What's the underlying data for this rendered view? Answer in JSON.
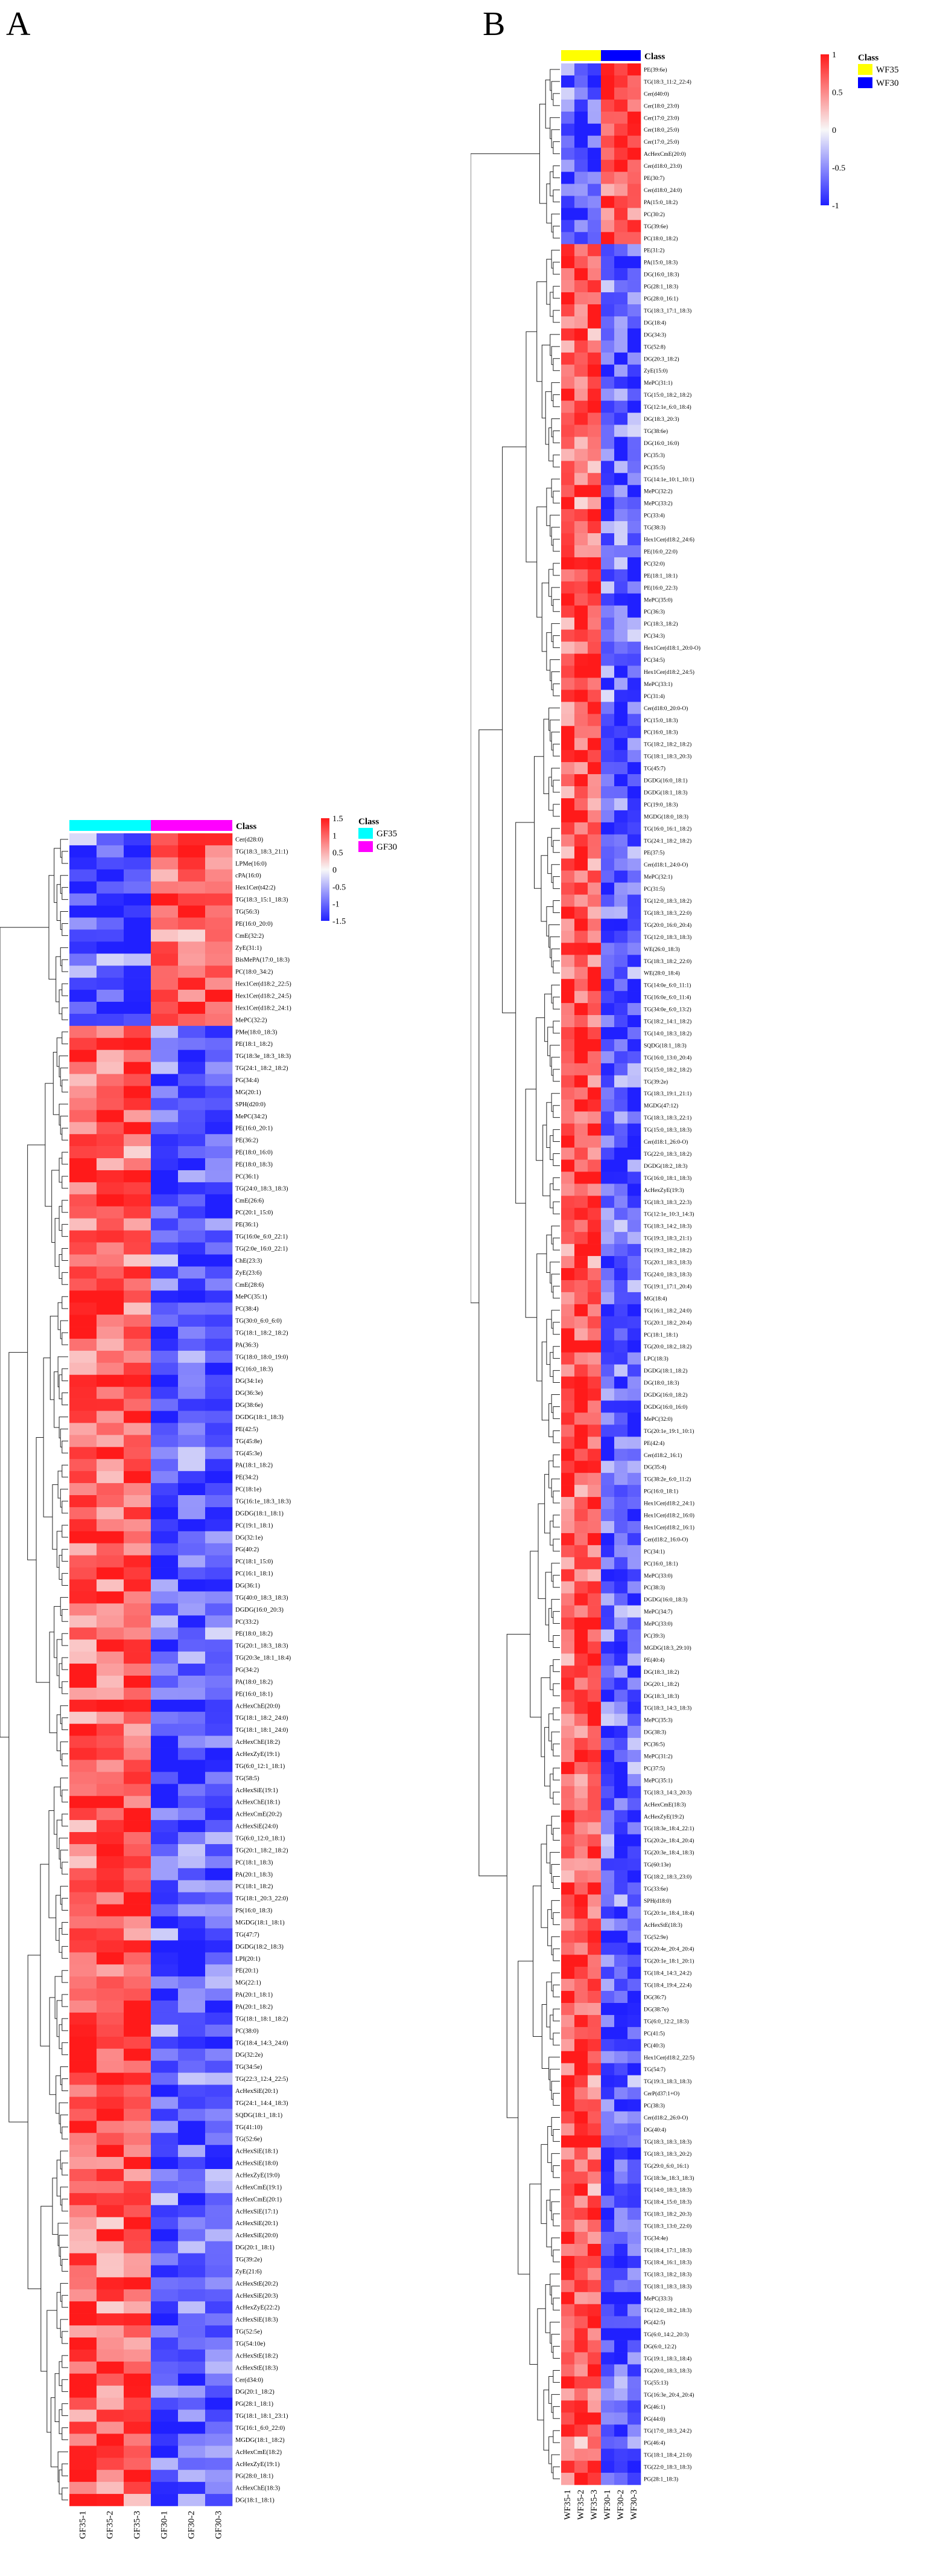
{
  "panels": [
    {
      "letter": "A",
      "colors": {
        "low": "#2020ff",
        "mid": "#f8f8f8",
        "high": "#ff1a1a"
      },
      "chart_data": {
        "type": "heatmap",
        "columns": [
          "GF35-1",
          "GF35-2",
          "GF35-3",
          "GF30-1",
          "GF30-2",
          "GF30-3"
        ],
        "column_class": [
          "GF35",
          "GF35",
          "GF35",
          "GF30",
          "GF30",
          "GF30"
        ],
        "class_title": "Class",
        "class_legend": [
          {
            "label": "GF35",
            "color": "#00ffff"
          },
          {
            "label": "GF30",
            "color": "#ff00ff"
          }
        ],
        "color_scale": {
          "ticks": [
            "1.5",
            "1",
            "0.5",
            "0",
            "-0.5",
            "-1",
            "-1.5"
          ],
          "range": [
            -1.5,
            1.5
          ]
        },
        "rows": [
          "Cer(d28:0)",
          "TG(18:3_18:3_21:1)",
          "LPMe(16:0)",
          "cPA(16:0)",
          "Hex1Cer(t42:2)",
          "TG(18:3_15:1_18:3)",
          "TG(56:3)",
          "PE(16:0_20:0)",
          "CmE(32:2)",
          "ZyE(31:1)",
          "BisMePA(17:0_18:3)",
          "PC(18:0_34:2)",
          "Hex1Cer(d18:2_22:5)",
          "Hex1Cer(d18:2_24:5)",
          "Hex1Cer(d18:2_24:1)",
          "MePC(32:2)",
          "PMe(18:0_18:3)",
          "PE(18:1_18:2)",
          "TG(18:3e_18:3_18:3)",
          "TG(24:1_18:2_18:2)",
          "PG(34:4)",
          "MG(20:1)",
          "SPH(d20:0)",
          "MePC(34:2)",
          "PE(16:0_20:1)",
          "PE(36:2)",
          "PE(18:0_16:0)",
          "PE(18:0_18:3)",
          "PC(36:1)",
          "TG(24:0_18:3_18:3)",
          "CmE(26:6)",
          "PC(20:1_15:0)",
          "PE(36:1)",
          "TG(16:0e_6:0_22:1)",
          "TG(2:0e_16:0_22:1)",
          "ChE(23:3)",
          "ZyE(23:6)",
          "CmE(28:6)",
          "MePC(35:1)",
          "PC(38:4)",
          "TG(30:0_6:0_6:0)",
          "TG(18:1_18:2_18:2)",
          "PA(36:3)",
          "TG(18:0_18:0_19:0)",
          "PC(16:0_18:3)",
          "DG(34:1e)",
          "DG(36:3e)",
          "DG(38:6e)",
          "DGDG(18:1_18:3)",
          "PE(42:5)",
          "TG(45:8e)",
          "TG(45:3e)",
          "PA(18:1_18:2)",
          "PE(34:2)",
          "PC(18:1e)",
          "TG(16:1e_18:3_18:3)",
          "DGDG(18:1_18:1)",
          "PC(19:1_18:1)",
          "DG(32:1e)",
          "PG(40:2)",
          "PC(18:1_15:0)",
          "PC(16:1_18:1)",
          "DG(36:1)",
          "TG(40:0_18:3_18:3)",
          "DGDG(16:0_20:3)",
          "PC(33:2)",
          "PE(18:0_18:2)",
          "TG(20:1_18:3_18:3)",
          "TG(20:3e_18:1_18:4)",
          "PG(34:2)",
          "PA(18:0_18:2)",
          "PE(16:0_18:1)",
          "AcHexChE(20:0)",
          "TG(18:1_18:2_24:0)",
          "TG(18:1_18:1_24:0)",
          "AcHexChE(18:2)",
          "AcHexZyE(19:1)",
          "TG(6:0_12:1_18:1)",
          "TG(58:5)",
          "AcHexSiE(19:1)",
          "AcHexChE(18:1)",
          "AcHexCmE(20:2)",
          "AcHexSiE(24:0)",
          "TG(6:0_12:0_18:1)",
          "TG(20:1_18:2_18:2)",
          "PC(18:1_18:3)",
          "PA(20:1_18:3)",
          "PC(18:1_18:2)",
          "TG(18:1_20:3_22:0)",
          "PS(16:0_18:3)",
          "MGDG(18:1_18:1)",
          "TG(47:7)",
          "DGDG(18:2_18:3)",
          "LPI(20:1)",
          "PE(20:1)",
          "MG(22:1)",
          "PA(20:1_18:1)",
          "PA(20:1_18:2)",
          "TG(18:1_18:1_18:2)",
          "PC(38:0)",
          "TG(18:4_14:3_24:0)",
          "DG(32:2e)",
          "TG(34:5e)",
          "TG(22:3_12:4_22:5)",
          "AcHexSiE(20:1)",
          "TG(24:1_14:4_18:3)",
          "SQDG(18:1_18:1)",
          "TG(41:10)",
          "TG(52:6e)",
          "AcHexSiE(18:1)",
          "AcHexSiE(18:0)",
          "AcHexZyE(19:0)",
          "AcHexCmE(19:1)",
          "AcHexCmE(20:1)",
          "AcHexSiE(17:1)",
          "AcHexSiE(20:1)",
          "AcHexSiE(20:0)",
          "DG(20:1_18:1)",
          "TG(39:2e)",
          "ZyE(21:6)",
          "AcHexStE(20:2)",
          "AcHexSiE(20:3)",
          "AcHexZyE(22:2)",
          "AcHexSiE(18:3)",
          "TG(52:5e)",
          "TG(54:10e)",
          "AcHexStE(18:2)",
          "AcHexStE(18:3)",
          "Cer(d34:0)",
          "DG(20:1_18:2)",
          "PG(28:1_18:1)",
          "TG(18:1_18:1_23:1)",
          "TG(16:1_6:0_22:0)",
          "MGDG(18:1_18:2)",
          "AcHexCmE(18:2)",
          "AcHexZyE(19:1)",
          "PG(28:0_18:1)",
          "AcHexChE(18:3)",
          "DG(18:1_18:1)"
        ],
        "legend_label_tag": "Class"
      }
    },
    {
      "letter": "B",
      "colors": {
        "low": "#2020ff",
        "mid": "#f8f8f8",
        "high": "#ff1a1a"
      },
      "chart_data": {
        "type": "heatmap",
        "columns": [
          "WF35-1",
          "WF35-2",
          "WF35-3",
          "WF30-1",
          "WF30-2",
          "WF30-3"
        ],
        "column_class": [
          "WF35",
          "WF35",
          "WF35",
          "WF30",
          "WF30",
          "WF30"
        ],
        "class_title": "Class",
        "class_legend": [
          {
            "label": "WF35",
            "color": "#ffff00"
          },
          {
            "label": "WF30",
            "color": "#0000ff"
          }
        ],
        "color_scale": {
          "ticks": [
            "1",
            "0.5",
            "0",
            "-0.5",
            "-1"
          ],
          "range": [
            -1,
            1
          ]
        },
        "rows": [
          "PE(39:6e)",
          "TG(18:3_11:2_22:4)",
          "Cer(d40:0)",
          "Cer(18:0_23:0)",
          "Cer(17:0_23:0)",
          "Cer(18:0_25:0)",
          "Cer(17:0_25:0)",
          "AcHexCmE(20:0)",
          "Cer(d18:0_23:0)",
          "PE(30:7)",
          "Cer(d18:0_24:0)",
          "PA(15:0_18:2)",
          "PC(30:2)",
          "TG(39:6e)",
          "PC(18:0_18:2)",
          "PE(31:2)",
          "PA(15:0_18:3)",
          "DG(16:0_18:3)",
          "PG(28:1_18:3)",
          "PG(28:0_16:1)",
          "TG(18:3_17:1_18:3)",
          "DG(18:4)",
          "DG(34:3)",
          "TG(52:8)",
          "DG(20:3_18:2)",
          "ZyE(15:0)",
          "MePC(31:1)",
          "TG(15:0_18:2_18:2)",
          "TG(12:1e_6:0_18:4)",
          "DG(18:3_20:3)",
          "TG(38:6e)",
          "DG(16:0_16:0)",
          "PC(35:3)",
          "PC(35:5)",
          "TG(14:1e_10:1_10:1)",
          "MePC(32:2)",
          "MePC(33:2)",
          "PC(33:4)",
          "TG(38:3)",
          "Hex1Cer(d18:2_24:6)",
          "PE(16:0_22:0)",
          "PC(32:0)",
          "PE(18:1_18:1)",
          "PE(16:0_22:3)",
          "MePC(35:0)",
          "PC(36:3)",
          "PC(18:3_18:2)",
          "PC(34:3)",
          "Hex1Cer(d18:1_20:0-O)",
          "PC(34:5)",
          "Hex1Cer(d18:2_24:5)",
          "MePC(33:1)",
          "PC(31:4)",
          "Cer(d18:0_20:0-O)",
          "PC(15:0_18:3)",
          "PC(16:0_18:3)",
          "TG(18:2_18:2_18:2)",
          "TG(18:1_18:3_20:3)",
          "TG(45:7)",
          "DGDG(16:0_18:1)",
          "DGDG(18:1_18:3)",
          "PC(19:0_18:3)",
          "MGDG(18:0_18:3)",
          "TG(16:0_16:1_18:2)",
          "TG(24:1_18:2_18:2)",
          "PE(37:5)",
          "Cer(d18:1_24:0-O)",
          "MePC(32:1)",
          "PC(31:5)",
          "TG(12:0_18:3_18:2)",
          "TG(18:3_18:3_22:0)",
          "TG(20:0_16:0_20:4)",
          "TG(12:0_18:3_18:3)",
          "WE(26:0_18:3)",
          "TG(18:3_18:2_22:0)",
          "WE(28:0_18:4)",
          "TG(14:0e_6:0_11:1)",
          "TG(16:0e_6:0_11:4)",
          "TG(34:0e_6:0_13:2)",
          "TG(18:2_14:1_18:2)",
          "TG(14:0_18:3_18:2)",
          "SQDG(18:1_18:3)",
          "TG(16:0_13:0_20:4)",
          "TG(15:0_18:2_18:2)",
          "TG(39:2e)",
          "TG(18:3_19:1_21:1)",
          "MGDG(47:12)",
          "TG(18:3_18:3_22:1)",
          "TG(15:0_18:3_18:3)",
          "Cer(d18:1_26:0-O)",
          "TG(22:0_18:3_18:2)",
          "DGDG(18:2_18:3)",
          "TG(16:0_18:1_18:3)",
          "AcHexZyE(19:3)",
          "TG(18:3_18:3_22:3)",
          "TG(12:1e_10:3_14:3)",
          "TG(18:3_14:2_18:3)",
          "TG(19:3_18:3_21:1)",
          "TG(19:3_18:2_18:2)",
          "TG(20:1_18:3_18:3)",
          "TG(24:0_18:3_18:3)",
          "TG(19:1_17:1_20:4)",
          "MG(18:4)",
          "TG(16:1_18:2_24:0)",
          "TG(20:1_18:2_20:4)",
          "PC(18:1_18:1)",
          "TG(20:0_18:2_18:2)",
          "LPC(18:3)",
          "DGDG(18:1_18:2)",
          "DG(18:0_18:3)",
          "DGDG(16:0_18:2)",
          "DGDG(16:0_16:0)",
          "MePC(32:0)",
          "TG(20:1e_19:1_10:1)",
          "PE(42:4)",
          "Cer(d18:2_16:1)",
          "DG(35:4)",
          "TG(38:2e_6:0_11:2)",
          "PG(16:0_18:1)",
          "Hex1Cer(d18:2_24:1)",
          "Hex1Cer(d18:2_16:0)",
          "Hex1Cer(d18:2_16:1)",
          "Cer(d18:2_16:0-O)",
          "PC(34:1)",
          "PC(16:0_18:1)",
          "MePC(33:0)",
          "PC(38:3)",
          "DGDG(16:0_18:3)",
          "MePC(34:7)",
          "MePC(33:0)",
          "PC(39:3)",
          "MGDG(18:3_29:10)",
          "PE(40:4)",
          "DG(18:3_18:2)",
          "DG(20:1_18:2)",
          "DG(18:3_18:3)",
          "TG(18:3_14:3_18:3)",
          "MePC(35:3)",
          "DG(38:3)",
          "PC(36:5)",
          "MePC(31:2)",
          "PC(37:5)",
          "MePC(35:1)",
          "TG(18:3_14:3_20:3)",
          "AcHexCmE(18:3)",
          "AcHexZyE(19:2)",
          "TG(18:3e_18:4_22:1)",
          "TG(20:2e_18:4_20:4)",
          "TG(20:3e_18:4_18:3)",
          "TG(60:13e)",
          "TG(18:2_18:3_23:0)",
          "TG(33:6e)",
          "SPH(d18:0)",
          "TG(20:1e_18:4_18:4)",
          "AcHexStE(18:3)",
          "TG(52:9e)",
          "TG(20:4e_20:4_20:4)",
          "TG(20:1e_18:1_20:1)",
          "TG(18:4_14:3_24:2)",
          "TG(18:4_19:4_22:4)",
          "DG(36:7)",
          "DG(38:7e)",
          "TG(6:0_12:2_18:3)",
          "PC(41:5)",
          "PC(40:3)",
          "Hex1Cer(d18:2_22:5)",
          "TG(54:7)",
          "TG(19:3_18:3_18:3)",
          "CerP(d37:1+O)",
          "PC(38:3)",
          "Cer(d18:2_26:0-O)",
          "DG(40:4)",
          "TG(18:3_18:3_18:3)",
          "TG(18:3_18:3_20:2)",
          "TG(29:0_6:0_16:1)",
          "TG(18:3e_18:3_18:3)",
          "TG(14:0_18:3_18:3)",
          "TG(18:4_15:0_18:3)",
          "TG(18:3_18:2_20:3)",
          "TG(18:3_13:0_22:0)",
          "TG(34:4e)",
          "TG(18:4_17:1_18:3)",
          "TG(18:4_16:1_18:3)",
          "TG(18:3_18:2_18:3)",
          "TG(18:1_18:3_18:3)",
          "MePC(33:3)",
          "TG(12:0_18:2_18:3)",
          "PG(42:5)",
          "TG(6:0_14:2_20:3)",
          "DG(6:0_12:2)",
          "TG(19:1_18:3_18:4)",
          "TG(20:0_18:3_18:3)",
          "TG(55:13)",
          "TG(16:3e_20:4_20:4)",
          "PG(46:1)",
          "PG(44:0)",
          "TG(17:0_18:3_24:2)",
          "PG(46:4)",
          "TG(18:1_18:4_21:0)",
          "TG(22:0_18:3_18:3)",
          "PG(28:1_18:3)"
        ],
        "legend_label_tag": "Class"
      }
    }
  ]
}
